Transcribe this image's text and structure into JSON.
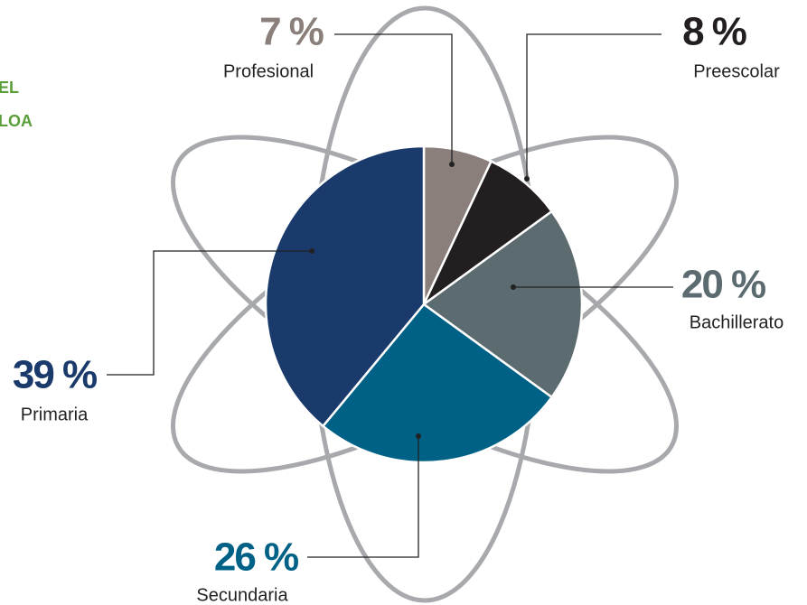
{
  "chart_data": {
    "type": "pie",
    "categories": [
      "Profesional",
      "Preescolar",
      "Bachillerato",
      "Secundaria",
      "Primaria"
    ],
    "values": [
      7,
      8,
      20,
      26,
      39
    ],
    "value_labels": [
      "7 %",
      "8 %",
      "20 %",
      "26 %",
      "39 %"
    ],
    "colors": [
      "#8a7f7b",
      "#231f20",
      "#5c6b70",
      "#006186",
      "#1a3a6b"
    ],
    "annotations": [
      "EL",
      "LOA"
    ]
  }
}
